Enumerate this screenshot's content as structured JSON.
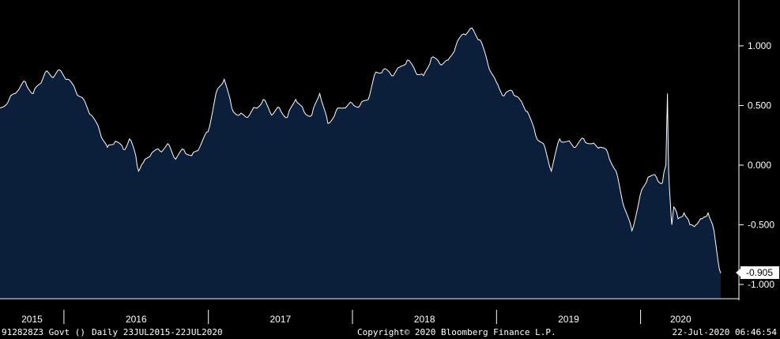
{
  "colors": {
    "background": "#000000",
    "area_fill": "#0b1f3a",
    "line": "#ffffff"
  },
  "footer": {
    "ticker": "912828Z3 Govt ()",
    "range": "Daily 23JUL2015-22JUL2020",
    "copyright": "Copyright© 2020 Bloomberg Finance L.P.",
    "timestamp": "22-Jul-2020 06:46:54"
  },
  "chart_data": {
    "type": "area",
    "title": "",
    "xlabel": "",
    "ylabel": "",
    "ylim": [
      -1.1,
      1.35
    ],
    "grid": false,
    "y_ticks": [
      1.0,
      0.5,
      0.0,
      -0.5,
      -1.0
    ],
    "y_tick_labels": [
      "1.000",
      "0.500",
      "0.000",
      "-0.500",
      "-1.000"
    ],
    "x_tick_labels": [
      "2015",
      "2016",
      "2017",
      "2018",
      "2019",
      "2020"
    ],
    "last_value_label": "-0.905",
    "series": [
      {
        "x": [
          "2015-07-23",
          "2015-08-15",
          "2015-09-05",
          "2015-09-25",
          "2015-10-15",
          "2015-10-31",
          "2015-11-15",
          "2015-12-01",
          "2015-12-20",
          "2016-01-10",
          "2016-01-31",
          "2016-02-20",
          "2016-03-10",
          "2016-04-01",
          "2016-04-20",
          "2016-05-10",
          "2016-05-31",
          "2016-06-15",
          "2016-07-01",
          "2016-07-08",
          "2016-07-20",
          "2016-08-10",
          "2016-08-31",
          "2016-09-20",
          "2016-10-10",
          "2016-10-31",
          "2016-11-20",
          "2016-12-10",
          "2016-12-31",
          "2017-01-20",
          "2017-02-10",
          "2017-03-01",
          "2017-03-20",
          "2017-04-10",
          "2017-04-30",
          "2017-05-20",
          "2017-06-10",
          "2017-06-30",
          "2017-07-20",
          "2017-08-10",
          "2017-08-31",
          "2017-09-20",
          "2017-10-10",
          "2017-10-31",
          "2017-11-20",
          "2017-12-10",
          "2017-12-31",
          "2018-01-20",
          "2018-02-10",
          "2018-03-01",
          "2018-03-20",
          "2018-04-10",
          "2018-04-30",
          "2018-05-20",
          "2018-06-10",
          "2018-06-30",
          "2018-07-20",
          "2018-08-10",
          "2018-08-31",
          "2018-09-20",
          "2018-10-10",
          "2018-10-31",
          "2018-11-20",
          "2018-12-10",
          "2018-12-31",
          "2019-01-20",
          "2019-02-10",
          "2019-03-01",
          "2019-03-20",
          "2019-04-10",
          "2019-04-30",
          "2019-05-20",
          "2019-06-10",
          "2019-06-30",
          "2019-07-20",
          "2019-08-10",
          "2019-08-31",
          "2019-09-20",
          "2019-10-10",
          "2019-10-31",
          "2019-11-20",
          "2019-12-10",
          "2019-12-31",
          "2020-01-20",
          "2020-02-10",
          "2020-02-25",
          "2020-03-05",
          "2020-03-09",
          "2020-03-12",
          "2020-03-16",
          "2020-03-20",
          "2020-03-25",
          "2020-04-05",
          "2020-04-20",
          "2020-05-05",
          "2020-05-20",
          "2020-06-05",
          "2020-06-20",
          "2020-07-05",
          "2020-07-15",
          "2020-07-22"
        ],
        "values": [
          0.48,
          0.55,
          0.62,
          0.7,
          0.6,
          0.68,
          0.78,
          0.74,
          0.8,
          0.72,
          0.62,
          0.55,
          0.42,
          0.28,
          0.15,
          0.2,
          0.13,
          0.22,
          0.08,
          -0.05,
          0.02,
          0.1,
          0.12,
          0.18,
          0.05,
          0.13,
          0.08,
          0.15,
          0.28,
          0.6,
          0.72,
          0.48,
          0.42,
          0.4,
          0.48,
          0.55,
          0.42,
          0.48,
          0.4,
          0.55,
          0.45,
          0.42,
          0.6,
          0.35,
          0.45,
          0.48,
          0.52,
          0.5,
          0.55,
          0.78,
          0.8,
          0.75,
          0.82,
          0.88,
          0.78,
          0.75,
          0.9,
          0.85,
          0.88,
          1.0,
          1.1,
          1.15,
          1.05,
          0.85,
          0.7,
          0.58,
          0.62,
          0.55,
          0.45,
          0.25,
          0.18,
          -0.05,
          0.22,
          0.2,
          0.15,
          0.22,
          0.18,
          0.15,
          0.1,
          -0.05,
          -0.35,
          -0.55,
          -0.25,
          -0.1,
          -0.1,
          -0.15,
          0.0,
          0.6,
          -0.05,
          -0.3,
          -0.5,
          -0.35,
          -0.45,
          -0.4,
          -0.5,
          -0.5,
          -0.45,
          -0.4,
          -0.55,
          -0.8,
          -0.905
        ]
      }
    ]
  }
}
